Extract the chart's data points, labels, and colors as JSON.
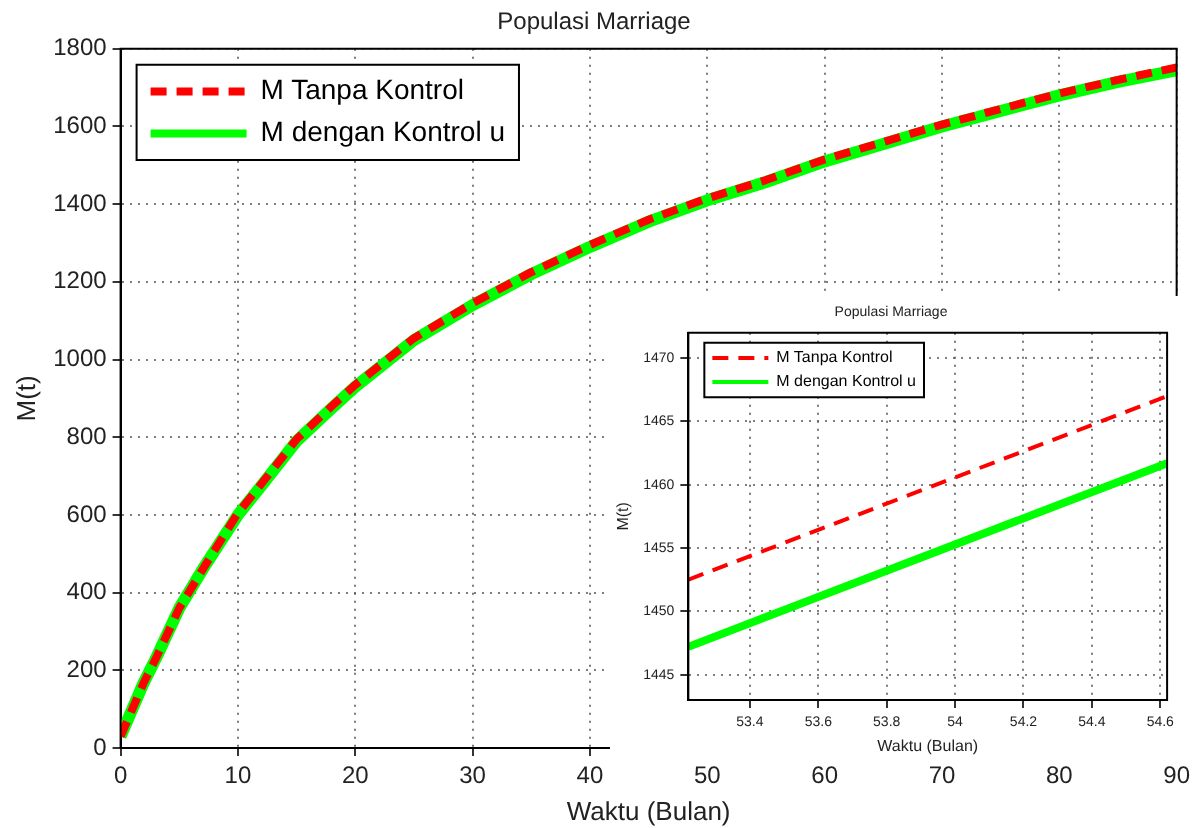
{
  "chart_data": [
    {
      "type": "line",
      "title": "Populasi Marriage",
      "xlabel": "Waktu (Bulan)",
      "ylabel": "M(t)",
      "xlim": [
        0,
        90
      ],
      "xticks": [
        0,
        10,
        20,
        30,
        40,
        50,
        60,
        70,
        80,
        90
      ],
      "ylim": [
        0,
        1800
      ],
      "yticks": [
        0,
        200,
        400,
        600,
        800,
        1000,
        1200,
        1400,
        1600,
        1800
      ],
      "grid": true,
      "legend": "top left",
      "marker": "none",
      "series": [
        {
          "name": "M Tanpa Kontrol",
          "color": "#ff0000",
          "line_style": "dashed",
          "x": [
            0,
            1,
            2,
            3,
            5,
            7,
            10,
            12,
            15,
            18,
            20,
            25,
            30,
            35,
            40,
            45,
            50,
            55,
            60,
            65,
            70,
            75,
            80,
            85,
            90
          ],
          "values": [
            30,
            100,
            170,
            230,
            360,
            460,
            605,
            680,
            795,
            880,
            935,
            1055,
            1145,
            1225,
            1295,
            1360,
            1415,
            1462,
            1515,
            1560,
            1605,
            1645,
            1685,
            1720,
            1752
          ]
        },
        {
          "name": "M dengan Kontrol u",
          "color": "#00ff00",
          "line_style": "solid",
          "x": [
            0,
            1,
            2,
            3,
            5,
            7,
            10,
            12,
            15,
            18,
            20,
            25,
            30,
            35,
            40,
            45,
            50,
            55,
            60,
            65,
            70,
            75,
            80,
            85,
            90
          ],
          "values": [
            30,
            100,
            170,
            230,
            360,
            460,
            600,
            675,
            790,
            875,
            930,
            1050,
            1140,
            1220,
            1290,
            1355,
            1410,
            1457,
            1510,
            1555,
            1600,
            1640,
            1680,
            1715,
            1745
          ]
        }
      ]
    },
    {
      "type": "line",
      "title": "Populasi Marriage",
      "xlabel": "Waktu (Bulan)",
      "ylabel": "M(t)",
      "xlim": [
        53.22,
        54.62
      ],
      "xticks": [
        53.4,
        53.6,
        53.8,
        54,
        54.2,
        54.4,
        54.6
      ],
      "ylim": [
        1443,
        1472
      ],
      "yticks": [
        1445,
        1450,
        1455,
        1460,
        1465,
        1470
      ],
      "grid": true,
      "legend": "top left",
      "marker": "none",
      "series": [
        {
          "name": "M Tanpa Kontrol",
          "color": "#ff0000",
          "line_style": "dashed",
          "x": [
            53.22,
            54.62
          ],
          "values": [
            1452.5,
            1467
          ]
        },
        {
          "name": "M dengan Kontrol u",
          "color": "#00ff00",
          "line_style": "solid",
          "x": [
            53.22,
            54.62
          ],
          "values": [
            1447.2,
            1461.7
          ]
        }
      ]
    }
  ]
}
